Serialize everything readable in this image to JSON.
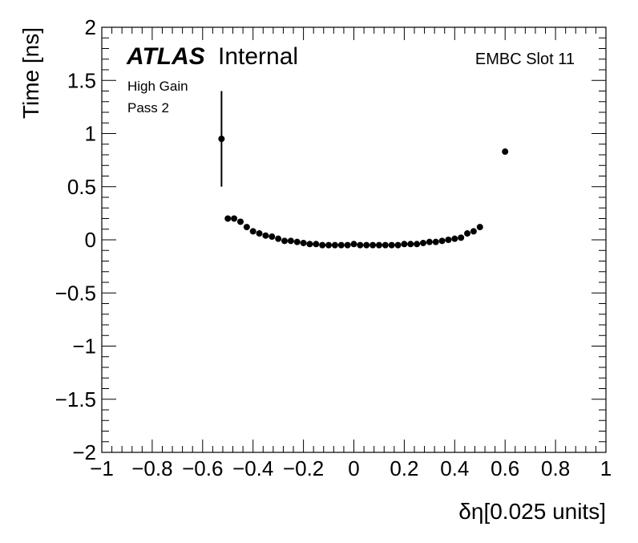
{
  "chart_data": {
    "type": "scatter",
    "ylabel": "Time [ns]",
    "xlabel": "δη[0.025 units]",
    "xlim": [
      -1,
      1
    ],
    "ylim": [
      -2,
      2
    ],
    "xticks": [
      -1,
      -0.8,
      -0.6,
      -0.4,
      -0.2,
      0,
      0.2,
      0.4,
      0.6,
      0.8,
      1
    ],
    "xtick_labels": [
      "−1",
      "−0.8",
      "−0.6",
      "−0.4",
      "−0.2",
      "0",
      "0.2",
      "0.4",
      "0.6",
      "0.8",
      "1"
    ],
    "yticks": [
      -2,
      -1.5,
      -1,
      -0.5,
      0,
      0.5,
      1,
      1.5,
      2
    ],
    "ytick_labels": [
      "−2",
      "−1.5",
      "−1",
      "−0.5",
      "0",
      "0.5",
      "1",
      "1.5",
      "2"
    ],
    "grid": false,
    "marker_color": "#000000",
    "annotations": {
      "atlas": "ATLAS",
      "internal": "Internal",
      "gain": "High Gain",
      "pass": "Pass 2",
      "slot": "EMBC Slot 11"
    },
    "x": [
      -0.525,
      -0.5,
      -0.475,
      -0.45,
      -0.425,
      -0.4,
      -0.375,
      -0.35,
      -0.325,
      -0.3,
      -0.275,
      -0.25,
      -0.225,
      -0.2,
      -0.175,
      -0.15,
      -0.125,
      -0.1,
      -0.075,
      -0.05,
      -0.025,
      0.0,
      0.025,
      0.05,
      0.075,
      0.1,
      0.125,
      0.15,
      0.175,
      0.2,
      0.225,
      0.25,
      0.275,
      0.3,
      0.325,
      0.35,
      0.375,
      0.4,
      0.425,
      0.45,
      0.475,
      0.5,
      0.6
    ],
    "y": [
      0.95,
      0.2,
      0.2,
      0.17,
      0.12,
      0.08,
      0.06,
      0.04,
      0.03,
      0.01,
      -0.01,
      -0.01,
      -0.02,
      -0.03,
      -0.04,
      -0.04,
      -0.05,
      -0.05,
      -0.05,
      -0.05,
      -0.05,
      -0.04,
      -0.05,
      -0.05,
      -0.05,
      -0.05,
      -0.05,
      -0.05,
      -0.05,
      -0.04,
      -0.04,
      -0.04,
      -0.03,
      -0.02,
      -0.02,
      -0.01,
      0.0,
      0.01,
      0.02,
      0.06,
      0.08,
      0.12,
      0.83
    ],
    "yerr": [
      0.45,
      0.01,
      0.01,
      0.01,
      0.01,
      0.01,
      0.01,
      0.01,
      0.01,
      0.01,
      0.01,
      0.01,
      0.01,
      0.01,
      0.01,
      0.01,
      0.01,
      0.01,
      0.01,
      0.01,
      0.01,
      0.01,
      0.01,
      0.01,
      0.01,
      0.01,
      0.01,
      0.01,
      0.01,
      0.01,
      0.01,
      0.01,
      0.01,
      0.01,
      0.01,
      0.01,
      0.01,
      0.01,
      0.01,
      0.01,
      0.01,
      0.01,
      0.01
    ]
  }
}
